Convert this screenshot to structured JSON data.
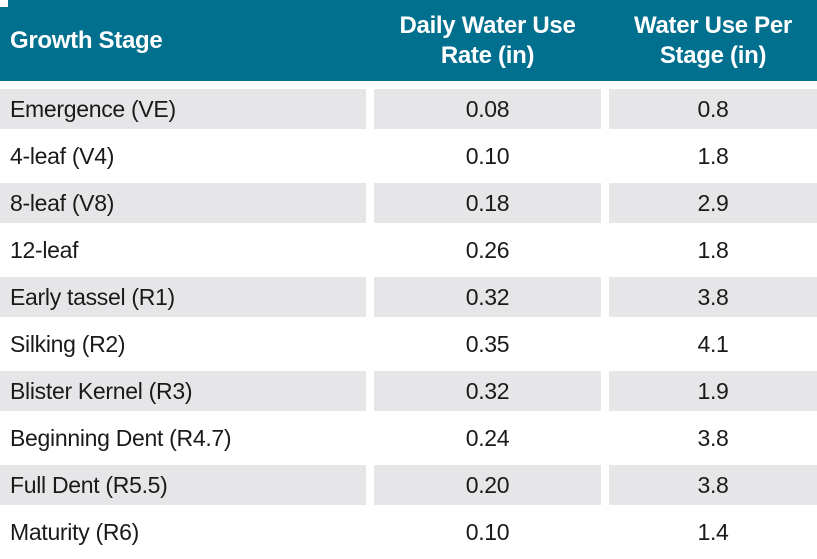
{
  "table": {
    "columns": [
      {
        "label": "Growth Stage"
      },
      {
        "label": "Daily Water Use Rate (in)"
      },
      {
        "label": "Water Use Per Stage (in)"
      }
    ],
    "rows": [
      {
        "stage": "Emergence (VE)",
        "daily_rate": "0.08",
        "per_stage": "0.8"
      },
      {
        "stage": "4-leaf (V4)",
        "daily_rate": "0.10",
        "per_stage": "1.8"
      },
      {
        "stage": "8-leaf (V8)",
        "daily_rate": "0.18",
        "per_stage": "2.9"
      },
      {
        "stage": "12-leaf",
        "daily_rate": "0.26",
        "per_stage": "1.8"
      },
      {
        "stage": "Early tassel (R1)",
        "daily_rate": "0.32",
        "per_stage": "3.8"
      },
      {
        "stage": "Silking (R2)",
        "daily_rate": "0.35",
        "per_stage": "4.1"
      },
      {
        "stage": "Blister Kernel (R3)",
        "daily_rate": "0.32",
        "per_stage": "1.9"
      },
      {
        "stage": "Beginning Dent (R4.7)",
        "daily_rate": "0.24",
        "per_stage": "3.8"
      },
      {
        "stage": "Full Dent (R5.5)",
        "daily_rate": "0.20",
        "per_stage": "3.8"
      },
      {
        "stage": "Maturity (R6)",
        "daily_rate": "0.10",
        "per_stage": "1.4"
      }
    ],
    "colors": {
      "header_bg": "#00708E",
      "header_text": "#FFFFFF",
      "alt_row_bg": "#E6E6E8",
      "body_text": "#1A1A1A"
    }
  },
  "chart_data": {
    "type": "table",
    "title": "",
    "columns": [
      "Growth Stage",
      "Daily Water Use Rate (in)",
      "Water Use Per Stage (in)"
    ],
    "rows": [
      [
        "Emergence (VE)",
        0.08,
        0.8
      ],
      [
        "4-leaf (V4)",
        0.1,
        1.8
      ],
      [
        "8-leaf (V8)",
        0.18,
        2.9
      ],
      [
        "12-leaf",
        0.26,
        1.8
      ],
      [
        "Early tassel (R1)",
        0.32,
        3.8
      ],
      [
        "Silking (R2)",
        0.35,
        4.1
      ],
      [
        "Blister Kernel (R3)",
        0.32,
        1.9
      ],
      [
        "Beginning Dent (R4.7)",
        0.24,
        3.8
      ],
      [
        "Full Dent (R5.5)",
        0.2,
        3.8
      ],
      [
        "Maturity (R6)",
        0.1,
        1.4
      ]
    ],
    "layout": {
      "header_fill": "#00708E",
      "banded_rows": true,
      "grid": "white-separators"
    }
  }
}
